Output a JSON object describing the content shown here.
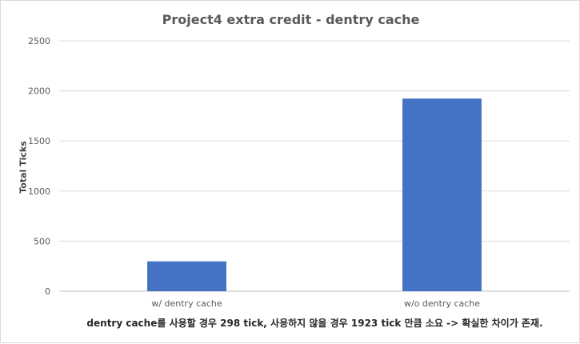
{
  "chart_data": {
    "type": "bar",
    "title": "Project4 extra credit - dentry cache",
    "xlabel": "",
    "ylabel": "Total Ticks",
    "categories": [
      "w/ dentry cache",
      "w/o dentry cache"
    ],
    "values": [
      298,
      1923
    ],
    "ylim": [
      0,
      2500
    ],
    "yticks": [
      0,
      500,
      1000,
      1500,
      2000,
      2500
    ],
    "grid": true,
    "bar_color": "#4472C4"
  },
  "caption": "dentry cache를 사용할 경우 298 tick, 사용하지 않을 경우 1923 tick 만큼 소요 -> 확실한 차이가 존재."
}
